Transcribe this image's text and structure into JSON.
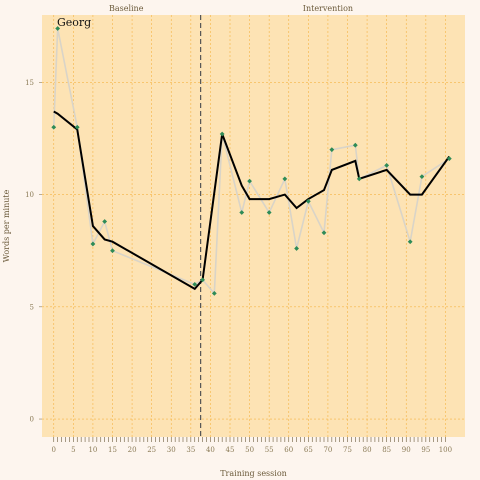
{
  "chart_data": {
    "type": "line",
    "title": "",
    "panel_label": "Georg",
    "xlabel": "Training session",
    "ylabel": "Words per minute",
    "xlim": [
      -3,
      105
    ],
    "ylim": [
      -0.8,
      18
    ],
    "x_ticks": [
      0,
      5,
      10,
      15,
      20,
      25,
      30,
      35,
      40,
      45,
      50,
      55,
      60,
      65,
      70,
      75,
      80,
      85,
      90,
      95,
      100
    ],
    "y_ticks": [
      0,
      5,
      10,
      15
    ],
    "grid": true,
    "phase_change_x": 37.5,
    "phases": [
      {
        "label": "Baseline",
        "x_center": 18.5
      },
      {
        "label": "Intervention",
        "x_center": 70
      }
    ],
    "series": [
      {
        "name": "",
        "kind": "observed",
        "color": "#d9d4c8",
        "marker_color": "#2e8b57",
        "x": [
          0,
          1,
          6,
          10,
          13,
          15,
          36,
          38,
          41,
          43,
          48,
          50,
          55,
          59,
          62,
          65,
          69,
          71,
          77,
          78,
          85,
          91,
          94,
          101
        ],
        "y": [
          13.0,
          17.4,
          13.0,
          7.8,
          8.8,
          7.5,
          6.0,
          6.2,
          5.6,
          12.7,
          9.2,
          10.6,
          9.2,
          10.7,
          7.6,
          9.7,
          8.3,
          12.0,
          12.2,
          10.7,
          11.3,
          7.9,
          10.8,
          11.6
        ]
      },
      {
        "name": "",
        "kind": "smoothed",
        "color": "#000000",
        "x": [
          0,
          1,
          6,
          10,
          13,
          15,
          36,
          38,
          43,
          48,
          50,
          55,
          59,
          62,
          65,
          69,
          71,
          77,
          78,
          85,
          91,
          94,
          101
        ],
        "y": [
          13.7,
          13.6,
          12.9,
          8.6,
          8.0,
          7.9,
          5.8,
          6.2,
          12.7,
          10.4,
          9.8,
          9.8,
          10.0,
          9.4,
          9.8,
          10.2,
          11.1,
          11.5,
          10.7,
          11.1,
          10.0,
          10.0,
          11.7
        ]
      }
    ]
  }
}
